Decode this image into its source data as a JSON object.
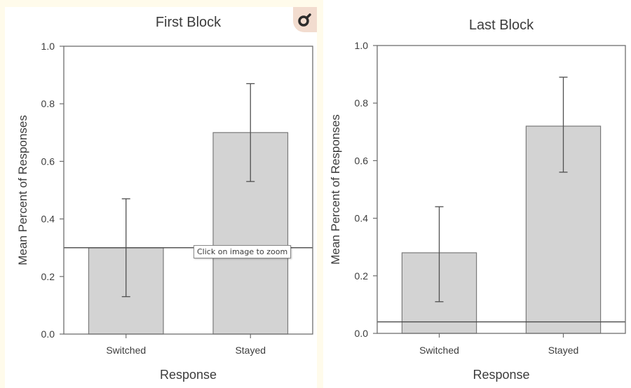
{
  "ui": {
    "tooltip_text": "Click on image to zoom",
    "zoom_icon": "magnifier-icon"
  },
  "colors": {
    "bar_fill": "#d3d3d3",
    "bar_stroke": "#7a7a7a",
    "axis": "#6e6e6e",
    "text": "#3c3c3c",
    "page_background": "#fffbeb"
  },
  "chart_data": [
    {
      "type": "bar",
      "title": "First Block",
      "xlabel": "Response",
      "ylabel": "Mean Percent of Responses",
      "categories": [
        "Switched",
        "Stayed"
      ],
      "values": [
        0.3,
        0.7
      ],
      "error_low": [
        0.13,
        0.53
      ],
      "error_high": [
        0.47,
        0.87
      ],
      "reference_line": 0.3,
      "ylim": [
        0.0,
        1.0
      ],
      "yticks": [
        "0.0",
        "0.2",
        "0.4",
        "0.6",
        "0.8",
        "1.0"
      ],
      "grid": false,
      "legend": "none"
    },
    {
      "type": "bar",
      "title": "Last Block",
      "xlabel": "Response",
      "ylabel": "Mean Percent of Responses",
      "categories": [
        "Switched",
        "Stayed"
      ],
      "values": [
        0.28,
        0.72
      ],
      "error_low": [
        0.11,
        0.56
      ],
      "error_high": [
        0.44,
        0.89
      ],
      "reference_line": 0.04,
      "ylim": [
        0.0,
        1.0
      ],
      "yticks": [
        "0.0",
        "0.2",
        "0.4",
        "0.6",
        "0.8",
        "1.0"
      ],
      "grid": false,
      "legend": "none"
    }
  ]
}
